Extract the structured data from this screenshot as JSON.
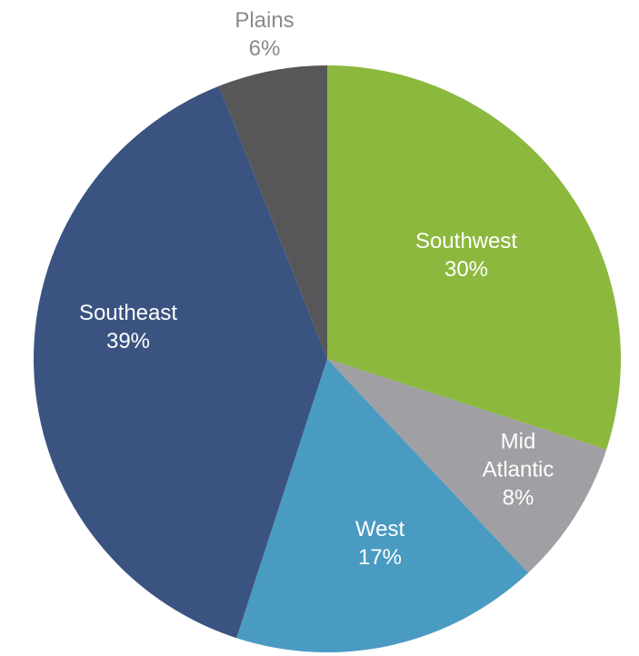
{
  "chart_data": {
    "type": "pie",
    "categories": [
      "Southwest",
      "Mid Atlantic",
      "West",
      "Southeast",
      "Plains"
    ],
    "values": [
      30,
      8,
      17,
      39,
      6
    ],
    "value_labels": [
      "30%",
      "8%",
      "17%",
      "39%",
      "6%"
    ],
    "colors": [
      "#8cb83e",
      "#a0a0a4",
      "#4a9bc1",
      "#3a5380",
      "#575759"
    ]
  }
}
